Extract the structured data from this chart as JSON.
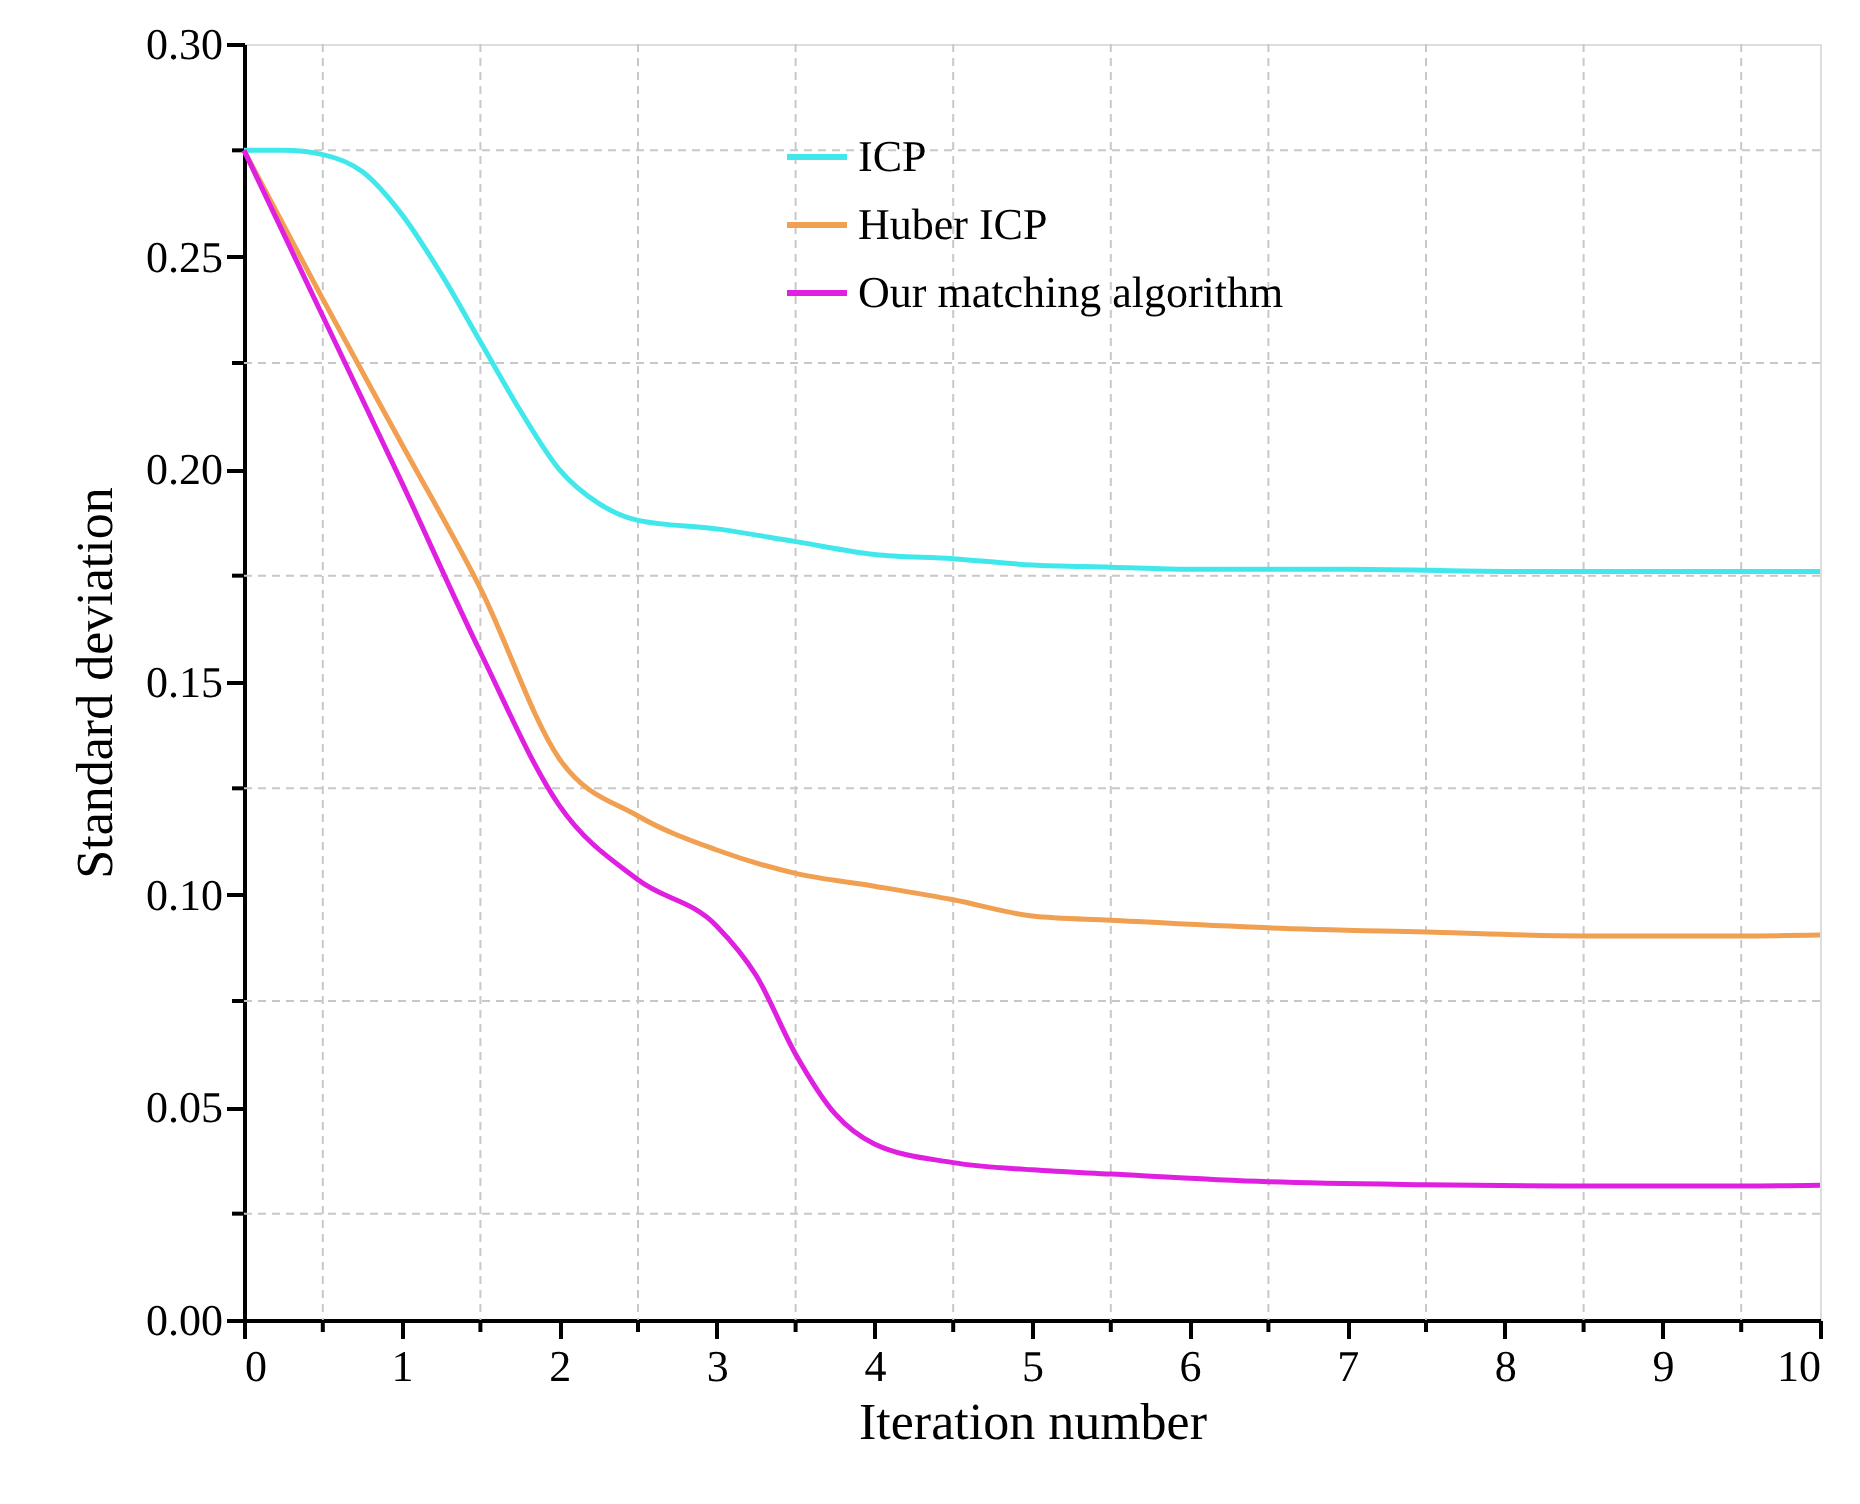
{
  "chart_data": {
    "type": "line",
    "xlabel": "Iteration number",
    "ylabel": "Standard deviation",
    "xlim": [
      0,
      10
    ],
    "ylim": [
      0,
      0.3
    ],
    "xticks": [
      0,
      1,
      2,
      3,
      4,
      5,
      6,
      7,
      8,
      9,
      10
    ],
    "yticks": [
      {
        "value": 0,
        "label": "0.00"
      },
      {
        "value": 0.05,
        "label": "0.05"
      },
      {
        "value": 0.1,
        "label": "0.10"
      },
      {
        "value": 0.15,
        "label": "0.15"
      },
      {
        "value": 0.2,
        "label": "0.20"
      },
      {
        "value": 0.25,
        "label": "0.25"
      },
      {
        "value": 0.3,
        "label": "0.30"
      }
    ],
    "grid": true,
    "legend": "top",
    "line_style": "solid",
    "series": [
      {
        "name": "ICP",
        "color": "#40e8ec",
        "x": [
          0,
          0.25,
          0.5,
          0.75,
          1,
          1.25,
          1.5,
          1.75,
          2,
          2.25,
          2.5,
          3,
          3.5,
          4,
          4.5,
          5,
          5.5,
          6,
          7,
          8,
          9,
          10
        ],
        "values": [
          0.275,
          0.275,
          0.274,
          0.27,
          0.26,
          0.246,
          0.23,
          0.214,
          0.2,
          0.192,
          0.188,
          0.186,
          0.183,
          0.18,
          0.179,
          0.1775,
          0.177,
          0.1765,
          0.1765,
          0.176,
          0.176,
          0.176
        ]
      },
      {
        "name": "Huber ICP",
        "color": "#f0a050",
        "x": [
          0,
          0.5,
          1,
          1.5,
          2,
          2.5,
          3,
          3.5,
          4,
          4.5,
          5,
          5.5,
          6.5,
          7.5,
          8.5,
          9.5,
          10
        ],
        "values": [
          0.275,
          0.24,
          0.206,
          0.172,
          0.132,
          0.1185,
          0.1105,
          0.105,
          0.102,
          0.0988,
          0.095,
          0.094,
          0.0922,
          0.0912,
          0.0903,
          0.0903,
          0.0905
        ]
      },
      {
        "name": "Our matching algorithm",
        "color": "#e020e0",
        "x": [
          0,
          0.5,
          1,
          1.5,
          2,
          2.5,
          3,
          3.25,
          3.5,
          3.75,
          4,
          4.5,
          5,
          5.5,
          6.5,
          7.5,
          8.5,
          9.5,
          10
        ],
        "values": [
          0.275,
          0.236,
          0.197,
          0.157,
          0.121,
          0.1035,
          0.0926,
          0.081,
          0.0625,
          0.0485,
          0.0414,
          0.037,
          0.0353,
          0.0343,
          0.0325,
          0.0318,
          0.0315,
          0.0315,
          0.0317
        ]
      }
    ]
  }
}
